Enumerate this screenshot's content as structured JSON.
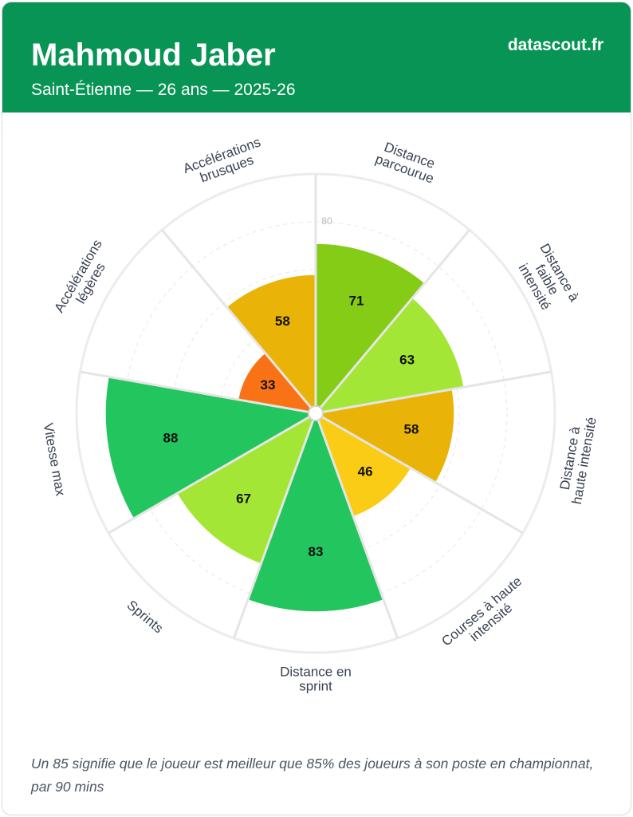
{
  "header": {
    "title": "Mahmoud Jaber",
    "subtitle": "Saint-Étienne — 26 ans — 2025-26",
    "brand": "datascout.fr"
  },
  "chart_data": {
    "type": "pizza",
    "categories": [
      "Distance parcourue",
      "Distance à faible intensité",
      "Distance à haute intensité",
      "Courses à haute intensité",
      "Distance en sprint",
      "Sprints",
      "Vitesse max",
      "Accélérations légères",
      "Accélérations brusques"
    ],
    "values": [
      71,
      63,
      58,
      46,
      83,
      67,
      88,
      33,
      58
    ],
    "colors": [
      "#84cc16",
      "#a3e635",
      "#eab308",
      "#facc15",
      "#22c55e",
      "#a3e635",
      "#22c55e",
      "#f97316",
      "#eab308"
    ],
    "ylim": [
      0,
      100
    ],
    "yticks": [
      20,
      40,
      60,
      80
    ],
    "grid": true
  },
  "footer": {
    "note": "Un 85 signifie que le joueur est meilleur que 85% des joueurs à son poste en championnat, par 90 mins"
  }
}
